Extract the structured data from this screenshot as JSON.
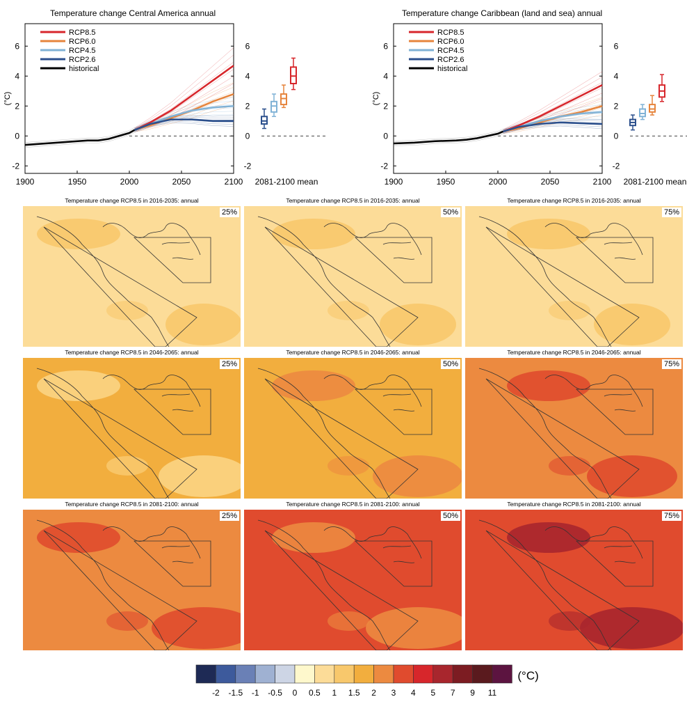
{
  "chart_data": [
    {
      "type": "line",
      "title": "Temperature change Central America annual",
      "ylabel": "(°C)",
      "xlim": [
        1900,
        2100
      ],
      "ylim": [
        -2.5,
        7.5
      ],
      "xticks": [
        1900,
        1950,
        2000,
        2050,
        2100
      ],
      "yticks": [
        -2,
        0,
        2,
        4,
        6
      ],
      "legend_position": "top-left",
      "series": [
        {
          "name": "RCP8.5",
          "color": "#d7262b",
          "x": [
            2005,
            2020,
            2040,
            2060,
            2080,
            2100
          ],
          "y": [
            0.4,
            0.9,
            1.7,
            2.7,
            3.7,
            4.7
          ]
        },
        {
          "name": "RCP6.0",
          "color": "#e6843c",
          "x": [
            2005,
            2020,
            2040,
            2060,
            2080,
            2100
          ],
          "y": [
            0.4,
            0.7,
            1.2,
            1.7,
            2.3,
            2.8
          ]
        },
        {
          "name": "RCP4.5",
          "color": "#80b2d6",
          "x": [
            2005,
            2020,
            2040,
            2060,
            2080,
            2100
          ],
          "y": [
            0.4,
            0.8,
            1.3,
            1.7,
            1.9,
            2.0
          ]
        },
        {
          "name": "RCP2.6",
          "color": "#2b4f8c",
          "x": [
            2005,
            2020,
            2040,
            2060,
            2080,
            2100
          ],
          "y": [
            0.4,
            0.8,
            1.1,
            1.1,
            1.0,
            1.0
          ]
        },
        {
          "name": "historical",
          "color": "#000000",
          "x": [
            1900,
            1920,
            1940,
            1960,
            1970,
            1980,
            1990,
            2000,
            2005
          ],
          "y": [
            -0.6,
            -0.5,
            -0.4,
            -0.3,
            -0.3,
            -0.2,
            0.0,
            0.2,
            0.4
          ]
        }
      ],
      "box_label": "2081-2100 mean",
      "boxes": [
        {
          "name": "RCP2.6",
          "color": "#2b4f8c",
          "min": 0.5,
          "q1": 0.8,
          "median": 1.0,
          "q3": 1.3,
          "max": 1.8
        },
        {
          "name": "RCP4.5",
          "color": "#80b2d6",
          "min": 1.3,
          "q1": 1.6,
          "median": 2.0,
          "q3": 2.3,
          "max": 2.8
        },
        {
          "name": "RCP6.0",
          "color": "#e6843c",
          "min": 1.9,
          "q1": 2.1,
          "median": 2.5,
          "q3": 2.8,
          "max": 3.4
        },
        {
          "name": "RCP8.5",
          "color": "#d7262b",
          "min": 3.1,
          "q1": 3.5,
          "median": 4.0,
          "q3": 4.6,
          "max": 5.2
        }
      ]
    },
    {
      "type": "line",
      "title": "Temperature change Caribbean (land and sea) annual",
      "ylabel": "(°C)",
      "xlim": [
        1900,
        2100
      ],
      "ylim": [
        -2.5,
        7.5
      ],
      "xticks": [
        1900,
        1950,
        2000,
        2050,
        2100
      ],
      "yticks": [
        -2,
        0,
        2,
        4,
        6
      ],
      "legend_position": "top-left",
      "series": [
        {
          "name": "RCP8.5",
          "color": "#d7262b",
          "x": [
            2005,
            2020,
            2040,
            2060,
            2080,
            2100
          ],
          "y": [
            0.3,
            0.7,
            1.3,
            2.0,
            2.7,
            3.4
          ]
        },
        {
          "name": "RCP6.0",
          "color": "#e6843c",
          "x": [
            2005,
            2020,
            2040,
            2060,
            2080,
            2100
          ],
          "y": [
            0.3,
            0.5,
            0.9,
            1.3,
            1.6,
            2.0
          ]
        },
        {
          "name": "RCP4.5",
          "color": "#80b2d6",
          "x": [
            2005,
            2020,
            2040,
            2060,
            2080,
            2100
          ],
          "y": [
            0.3,
            0.6,
            1.0,
            1.3,
            1.5,
            1.6
          ]
        },
        {
          "name": "RCP2.6",
          "color": "#2b4f8c",
          "x": [
            2005,
            2020,
            2040,
            2060,
            2080,
            2100
          ],
          "y": [
            0.3,
            0.6,
            0.8,
            0.9,
            0.85,
            0.8
          ]
        },
        {
          "name": "historical",
          "color": "#000000",
          "x": [
            1900,
            1920,
            1940,
            1960,
            1970,
            1980,
            1990,
            2000,
            2005
          ],
          "y": [
            -0.5,
            -0.45,
            -0.35,
            -0.3,
            -0.25,
            -0.15,
            0.0,
            0.15,
            0.3
          ]
        }
      ],
      "box_label": "2081-2100 mean",
      "boxes": [
        {
          "name": "RCP2.6",
          "color": "#2b4f8c",
          "min": 0.4,
          "q1": 0.7,
          "median": 0.9,
          "q3": 1.1,
          "max": 1.4
        },
        {
          "name": "RCP4.5",
          "color": "#80b2d6",
          "min": 1.1,
          "q1": 1.3,
          "median": 1.5,
          "q3": 1.8,
          "max": 2.1
        },
        {
          "name": "RCP6.0",
          "color": "#e6843c",
          "min": 1.4,
          "q1": 1.6,
          "median": 1.8,
          "q3": 2.1,
          "max": 2.7
        },
        {
          "name": "RCP8.5",
          "color": "#d7262b",
          "min": 2.3,
          "q1": 2.6,
          "median": 3.0,
          "q3": 3.4,
          "max": 4.1
        }
      ]
    },
    {
      "type": "heatmap",
      "maps": [
        {
          "title": "Temperature change RCP8.5 in 2016-2035: annual",
          "percentile": "25%",
          "base_color": "#fcdc98",
          "patch_color": "#f8c86c"
        },
        {
          "title": "Temperature change RCP8.5 in 2016-2035: annual",
          "percentile": "50%",
          "base_color": "#fcdc98",
          "patch_color": "#f8c86c"
        },
        {
          "title": "Temperature change RCP8.5 in 2016-2035: annual",
          "percentile": "75%",
          "base_color": "#fcdc98",
          "patch_color": "#f8c86c"
        },
        {
          "title": "Temperature change RCP8.5 in 2046-2065: annual",
          "percentile": "25%",
          "base_color": "#f2ae3e",
          "patch_color": "#fbd483"
        },
        {
          "title": "Temperature change RCP8.5 in 2046-2065: annual",
          "percentile": "50%",
          "base_color": "#f2ae3e",
          "patch_color": "#ec8a40"
        },
        {
          "title": "Temperature change RCP8.5 in 2046-2065: annual",
          "percentile": "75%",
          "base_color": "#ec8a40",
          "patch_color": "#e04b2e"
        },
        {
          "title": "Temperature change RCP8.5 in 2081-2100: annual",
          "percentile": "25%",
          "base_color": "#ec8a40",
          "patch_color": "#e04b2e"
        },
        {
          "title": "Temperature change RCP8.5 in 2081-2100: annual",
          "percentile": "50%",
          "base_color": "#e04b2e",
          "patch_color": "#ec8a40"
        },
        {
          "title": "Temperature change RCP8.5 in 2081-2100: annual",
          "percentile": "75%",
          "base_color": "#e04b2e",
          "patch_color": "#a8262d"
        }
      ]
    }
  ],
  "colorbar": {
    "unit": "(°C)",
    "labels": [
      "-2",
      "-1.5",
      "-1",
      "-0.5",
      "0",
      "0.5",
      "1",
      "1.5",
      "2",
      "3",
      "4",
      "5",
      "7",
      "9",
      "11"
    ],
    "colors": [
      "#1e2a55",
      "#3d5a9c",
      "#6a80b6",
      "#9fb1d2",
      "#cdd5e5",
      "#fef8cc",
      "#fcdc98",
      "#f8c86c",
      "#f2ae3e",
      "#ec8a40",
      "#e04b2e",
      "#d7262b",
      "#a8262d",
      "#7c1c22",
      "#5a1a1e",
      "#5c1440"
    ]
  }
}
